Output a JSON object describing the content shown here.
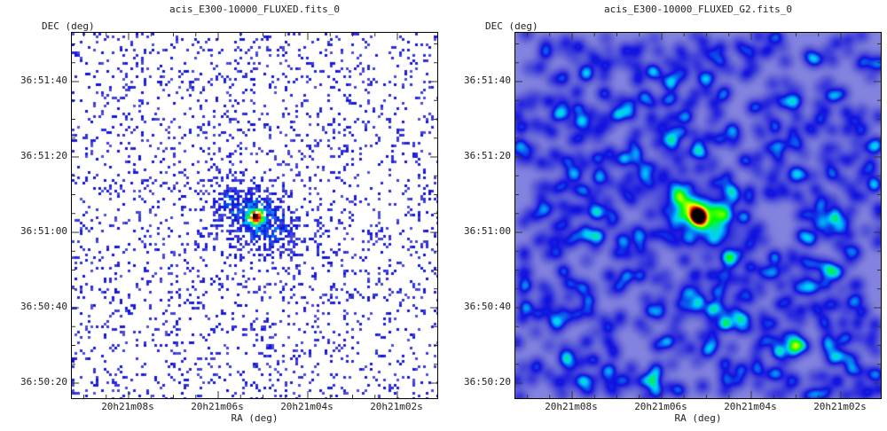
{
  "panels": [
    {
      "title": "acis_E300-10000_FLUXED.fits_0",
      "ylabel": "DEC (deg)",
      "xlabel": "RA (deg)",
      "style": "counts"
    },
    {
      "title": "acis_E300-10000_FLUXED_G2.fits_0",
      "ylabel": "DEC (deg)",
      "xlabel": "RA (deg)",
      "style": "smoothed"
    }
  ],
  "chart_data": [
    {
      "type": "heatmap",
      "title": "acis_E300-10000_FLUXED.fits_0",
      "xlabel": "RA (deg)",
      "ylabel": "DEC (deg)",
      "xlim": [
        "20h21m09.2s",
        "20h21m01.5s"
      ],
      "ylim": [
        "36:50:15",
        "36:51:52"
      ],
      "x_ticks": [
        "20h21m08s",
        "20h21m06s",
        "20h21m04s",
        "20h21m02s"
      ],
      "y_ticks": [
        "36:51:40",
        "36:51:20",
        "36:51:00",
        "36:50:40",
        "36:50:20"
      ],
      "source_center": {
        "ra": "20h21m05.7s",
        "dec": "36:51:04"
      },
      "colormap": [
        "#ffffff",
        "#6b6bd9",
        "#1111e0",
        "#00d0ff",
        "#00ff00",
        "#ffff00",
        "#ff0000",
        "#000000"
      ]
    },
    {
      "type": "heatmap",
      "title": "acis_E300-10000_FLUXED_G2.fits_0",
      "xlabel": "RA (deg)",
      "ylabel": "DEC (deg)",
      "xlim": [
        "20h21m09.2s",
        "20h21m01.5s"
      ],
      "ylim": [
        "36:50:15",
        "36:51:52"
      ],
      "x_ticks": [
        "20h21m08s",
        "20h21m06s",
        "20h21m04s",
        "20h21m02s"
      ],
      "y_ticks": [
        "36:51:40",
        "36:51:20",
        "36:51:00",
        "36:50:40",
        "36:50:20"
      ],
      "source_center": {
        "ra": "20h21m05.7s",
        "dec": "36:51:04"
      },
      "colormap": [
        "#ffffff",
        "#6b6bd9",
        "#1111e0",
        "#00d0ff",
        "#00ff00",
        "#ffff00",
        "#ff0000",
        "#000000"
      ]
    }
  ]
}
